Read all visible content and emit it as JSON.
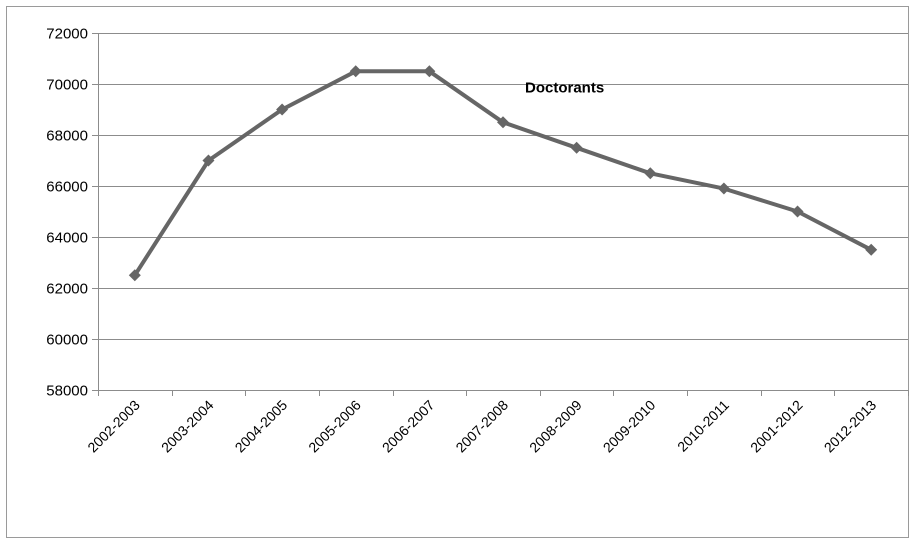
{
  "chart_data": {
    "type": "line",
    "categories": [
      "2002-2003",
      "2003-2004",
      "2004-2005",
      "2005-2006",
      "2006-2007",
      "2007-2008",
      "2008-2009",
      "2009-2010",
      "2010-2011",
      "2001-2012",
      "2012-2013"
    ],
    "series": [
      {
        "name": "Doctorants",
        "values": [
          62500,
          67000,
          69000,
          70500,
          70500,
          68500,
          67500,
          66500,
          65900,
          65000,
          63500
        ]
      }
    ],
    "ylim": [
      58000,
      72000
    ],
    "yticks": [
      58000,
      60000,
      62000,
      64000,
      66000,
      68000,
      70000,
      72000
    ],
    "grid": true,
    "legend": "none",
    "colors": {
      "line": "#666666",
      "grid": "#8c8c8c",
      "axis": "#8c8c8c"
    }
  }
}
